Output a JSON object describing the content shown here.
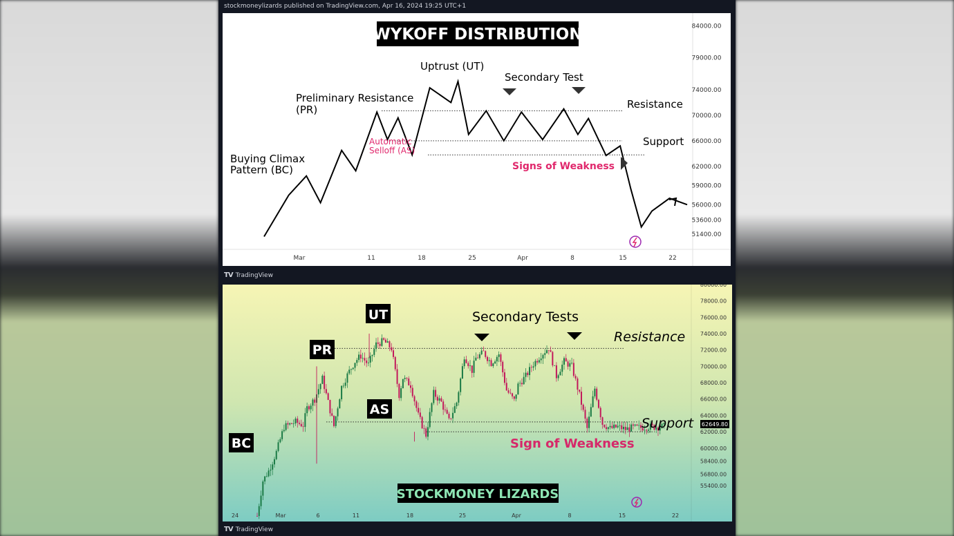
{
  "publish_line": "stockmoneylizards published on TradingView.com, Apr 16, 2024 19:25 UTC+1",
  "brand_label": "TradingView",
  "brand_logo": "TV",
  "icons": [
    "tradingview-logo-icon",
    "lightning-icon"
  ],
  "colors": {
    "frame": "#131722",
    "pink": "#e0286c",
    "black": "#000000",
    "top_bg": "#ffffff",
    "bottom_bg_top": "#f6f5b4",
    "bottom_bg_bottom": "#7dccc3"
  },
  "chart_data": [
    {
      "type": "line",
      "title": "WYKOFF DISTRIBUTION",
      "x_ticks": [
        "Mar",
        "11",
        "18",
        "25",
        "Apr",
        "8",
        "15",
        "22"
      ],
      "y_ticks": [
        "84000.00",
        "79000.00",
        "74000.00",
        "70000.00",
        "66000.00",
        "62000.00",
        "59000.00",
        "56000.00",
        "53600.00",
        "51400.00"
      ],
      "ylim": [
        49000,
        86000
      ],
      "series": [
        {
          "x": [
            0,
            3.5,
            6,
            8,
            11,
            13,
            16,
            17.5,
            19,
            21,
            23.5,
            26.5,
            27.5,
            29,
            31.5,
            34,
            36.5,
            39.5,
            42.5,
            44.5,
            46,
            48.5,
            50.5,
            52,
            53.5,
            55,
            57.5,
            60
          ],
          "y": [
            51000,
            57500,
            60500,
            56300,
            64500,
            61300,
            70500,
            66200,
            69600,
            63800,
            74300,
            72000,
            75300,
            67000,
            70700,
            66000,
            70500,
            66200,
            71000,
            67000,
            69500,
            63700,
            65200,
            58500,
            52500,
            55000,
            57000,
            56000
          ]
        }
      ],
      "lines": [
        {
          "label": "Resistance",
          "y": 70700
        },
        {
          "label": "Support",
          "y": 66000
        },
        {
          "label": "",
          "y": 63800
        }
      ],
      "annotations": [
        "Uptrust (UT)",
        "Secondary Test",
        "Preliminary Resistance",
        "(PR)",
        "Resistance",
        "Automatic",
        "Selloff (AS)",
        "Support",
        "Buying Climax",
        "Pattern (BC)",
        "Signs of Weakness"
      ]
    },
    {
      "type": "candlestick",
      "title": "STOCKMONEY LIZARDS",
      "x_ticks": [
        "24",
        "Mar",
        "6",
        "11",
        "18",
        "25",
        "Apr",
        "8",
        "15",
        "22"
      ],
      "y_ticks": [
        "80000.00",
        "78000.00",
        "76000.00",
        "74000.00",
        "72000.00",
        "70000.00",
        "68000.00",
        "66000.00",
        "64000.00",
        "62000.00",
        "60000.00",
        "58400.00",
        "56800.00",
        "55400.00"
      ],
      "ylim": [
        52800,
        80000
      ],
      "price_label": "62649.80",
      "path": {
        "x": [
          0,
          1.5,
          3,
          5,
          7,
          10,
          12,
          13,
          15,
          17,
          20,
          22,
          24,
          25.5,
          27,
          29,
          31,
          33,
          35,
          37,
          38,
          40,
          42,
          44,
          46,
          48,
          50,
          52,
          54,
          56,
          57,
          59,
          61,
          63,
          65,
          67,
          68,
          70,
          72,
          74,
          76,
          78,
          80,
          82,
          84,
          86,
          88,
          90,
          92,
          94,
          96,
          98,
          100,
          102,
          104,
          105,
          106
        ],
        "y": [
          51700,
          56000,
          57200,
          59500,
          62600,
          63200,
          62800,
          64900,
          66000,
          68500,
          62700,
          67500,
          69400,
          70600,
          71300,
          70200,
          72700,
          73100,
          72200,
          66500,
          68600,
          67700,
          64000,
          61600,
          66700,
          65600,
          63300,
          65600,
          71300,
          69500,
          71000,
          71700,
          70400,
          71500,
          67100,
          65800,
          67700,
          68800,
          70300,
          71400,
          72300,
          68800,
          70600,
          70000,
          66500,
          62400,
          67300,
          63000,
          62400,
          62600,
          62300,
          62500,
          62500,
          62600,
          62600,
          62600,
          62650
        ]
      },
      "lines": [
        {
          "label": "Resistance",
          "y": 72200
        },
        {
          "label": "Support",
          "y": 63200
        },
        {
          "label": "",
          "y": 62000
        }
      ],
      "annotations": [
        "UT",
        "Secondary Tests",
        "PR",
        "Resistance",
        "AS",
        "Support",
        "BC",
        "Sign of Weakness"
      ]
    }
  ]
}
